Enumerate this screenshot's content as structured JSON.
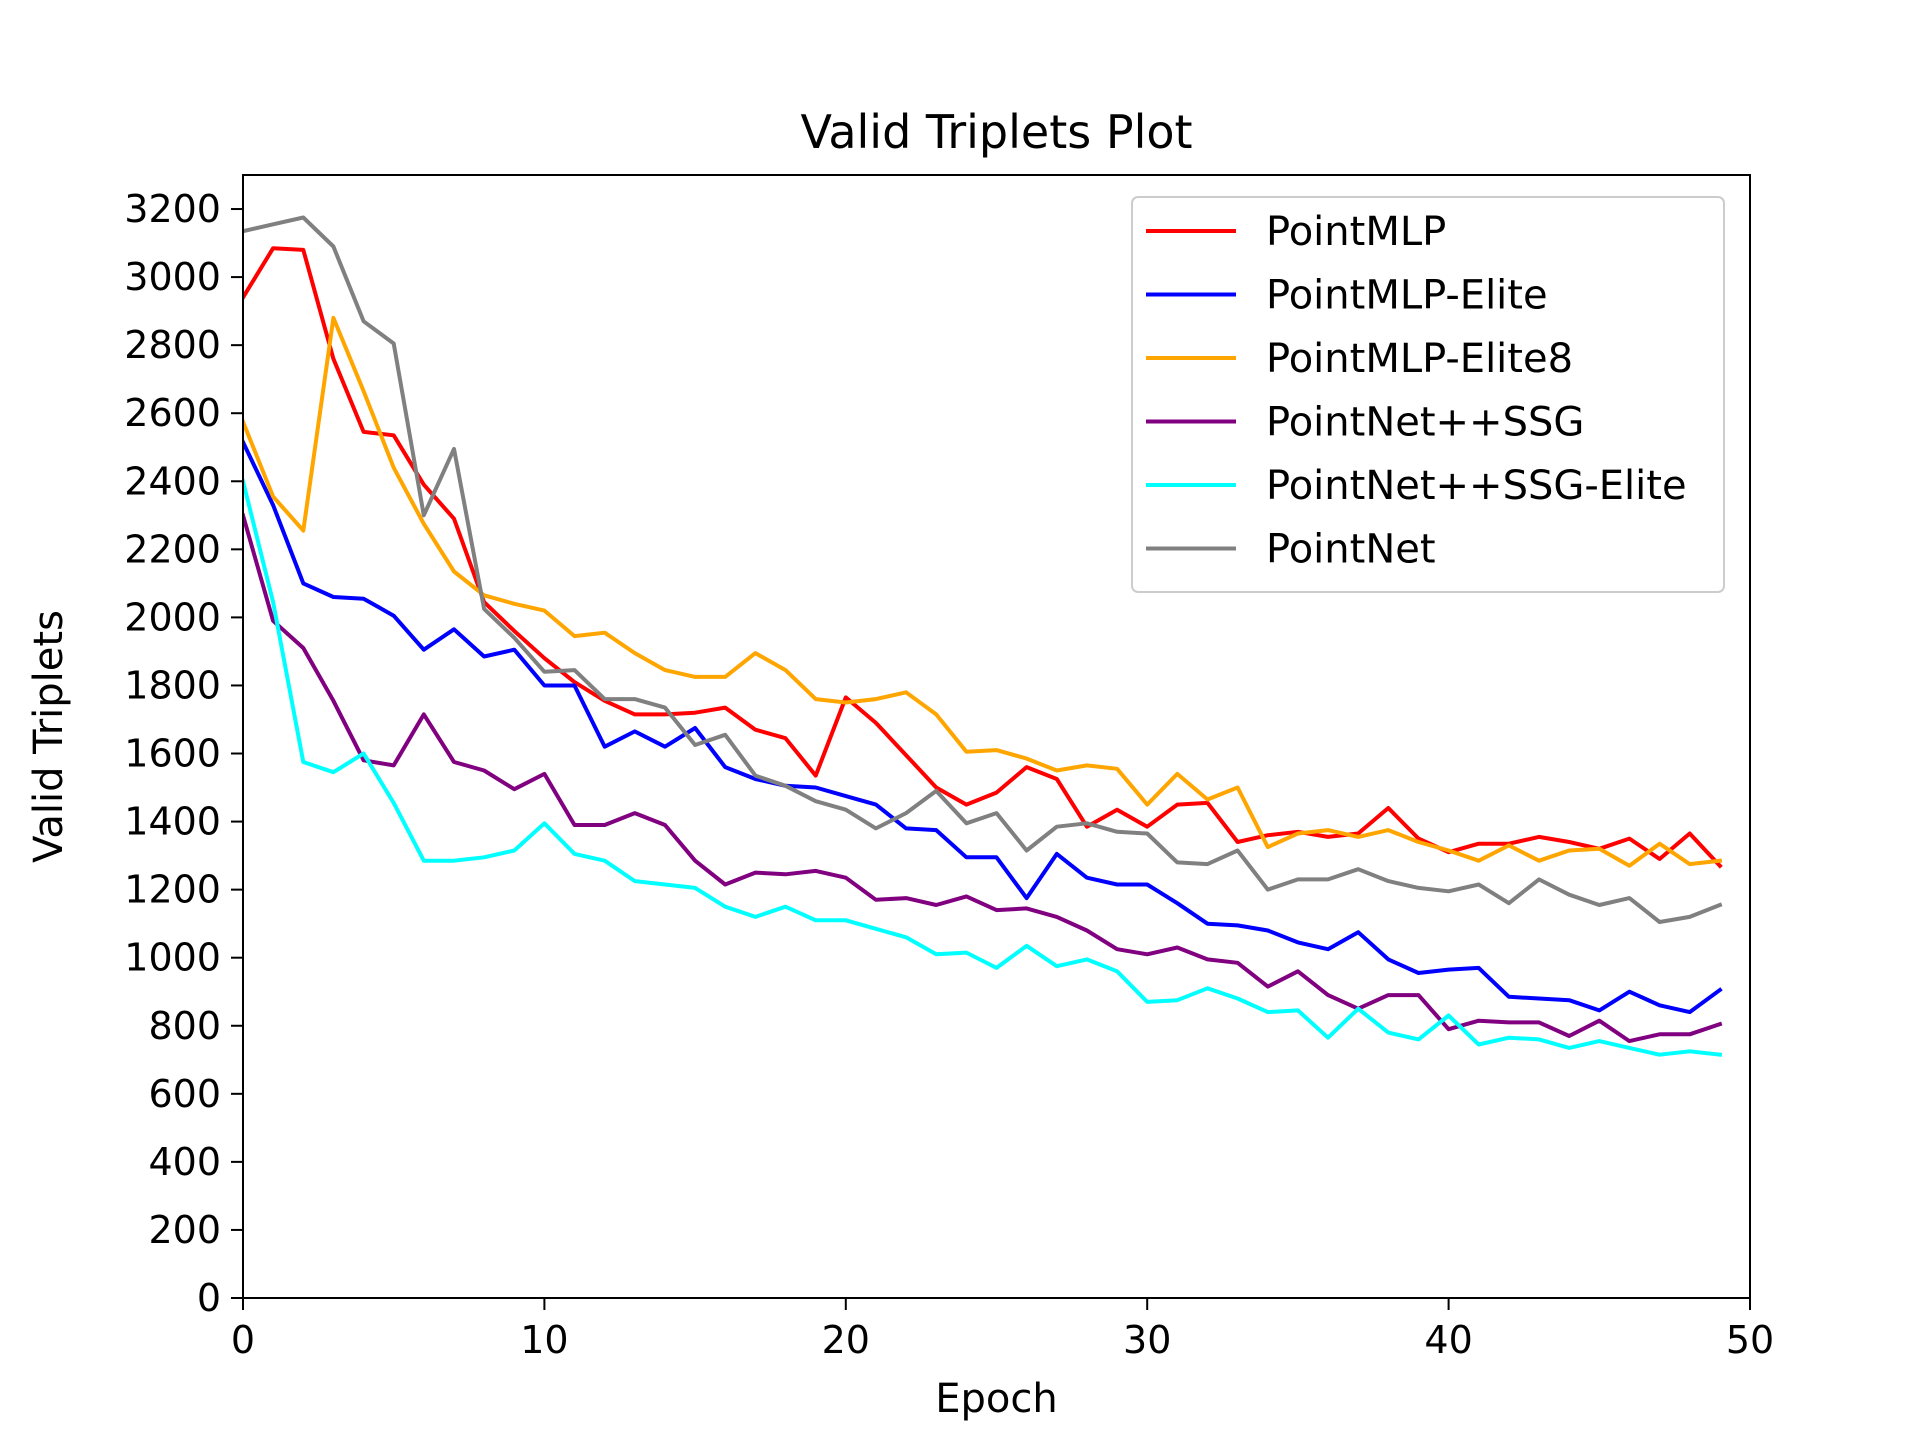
{
  "chart_data": {
    "type": "line",
    "title": "Valid Triplets Plot",
    "xlabel": "Epoch",
    "ylabel": "Valid Triplets",
    "xlim": [
      0,
      50
    ],
    "ylim": [
      0,
      3300
    ],
    "xticks": [
      0,
      10,
      20,
      30,
      40,
      50
    ],
    "yticks": [
      0,
      200,
      400,
      600,
      800,
      1000,
      1200,
      1400,
      1600,
      1800,
      2000,
      2200,
      2400,
      2600,
      2800,
      3000,
      3200
    ],
    "grid": false,
    "legend_position": "upper right",
    "x": [
      0,
      1,
      2,
      3,
      4,
      5,
      6,
      7,
      8,
      9,
      10,
      11,
      12,
      13,
      14,
      15,
      16,
      17,
      18,
      19,
      20,
      21,
      22,
      23,
      24,
      25,
      26,
      27,
      28,
      29,
      30,
      31,
      32,
      33,
      34,
      35,
      36,
      37,
      38,
      39,
      40,
      41,
      42,
      43,
      44,
      45,
      46,
      47,
      48,
      49
    ],
    "series": [
      {
        "name": "PointMLP",
        "color": "#ff0000",
        "values": [
          2940,
          3085,
          3080,
          2760,
          2545,
          2535,
          2390,
          2290,
          2045,
          1960,
          1880,
          1810,
          1755,
          1715,
          1715,
          1720,
          1735,
          1670,
          1645,
          1535,
          1765,
          1690,
          1595,
          1500,
          1450,
          1485,
          1560,
          1525,
          1385,
          1435,
          1385,
          1450,
          1455,
          1340,
          1360,
          1370,
          1355,
          1365,
          1440,
          1350,
          1310,
          1335,
          1335,
          1355,
          1340,
          1320,
          1350,
          1290,
          1365,
          1270
        ]
      },
      {
        "name": "PointMLP-Elite",
        "color": "#0000ff",
        "values": [
          2515,
          2330,
          2100,
          2060,
          2055,
          2005,
          1905,
          1965,
          1885,
          1905,
          1800,
          1800,
          1620,
          1665,
          1620,
          1675,
          1560,
          1525,
          1505,
          1500,
          1475,
          1450,
          1380,
          1375,
          1295,
          1295,
          1175,
          1305,
          1235,
          1215,
          1215,
          1160,
          1100,
          1095,
          1080,
          1045,
          1025,
          1075,
          995,
          955,
          965,
          970,
          885,
          880,
          875,
          845,
          900,
          860,
          840,
          905
        ]
      },
      {
        "name": "PointMLP-Elite8",
        "color": "#ffa500",
        "values": [
          2575,
          2355,
          2255,
          2880,
          2665,
          2440,
          2275,
          2135,
          2065,
          2040,
          2020,
          1945,
          1955,
          1895,
          1845,
          1825,
          1825,
          1895,
          1845,
          1760,
          1750,
          1760,
          1780,
          1715,
          1605,
          1610,
          1585,
          1550,
          1565,
          1555,
          1450,
          1540,
          1465,
          1500,
          1325,
          1365,
          1375,
          1355,
          1375,
          1340,
          1315,
          1285,
          1330,
          1285,
          1315,
          1320,
          1270,
          1335,
          1275,
          1285
        ]
      },
      {
        "name": "PointNet++SSG",
        "color": "#800080",
        "values": [
          2300,
          1990,
          1910,
          1755,
          1580,
          1565,
          1715,
          1575,
          1550,
          1495,
          1540,
          1390,
          1390,
          1425,
          1390,
          1285,
          1215,
          1250,
          1245,
          1255,
          1235,
          1170,
          1175,
          1155,
          1180,
          1140,
          1145,
          1120,
          1080,
          1025,
          1010,
          1030,
          995,
          985,
          915,
          960,
          890,
          850,
          890,
          890,
          790,
          815,
          810,
          810,
          770,
          815,
          755,
          775,
          775,
          805
        ]
      },
      {
        "name": "PointNet++SSG-Elite",
        "color": "#00ffff",
        "values": [
          2400,
          2045,
          1575,
          1545,
          1600,
          1455,
          1285,
          1285,
          1295,
          1315,
          1395,
          1305,
          1285,
          1225,
          1215,
          1205,
          1150,
          1120,
          1150,
          1110,
          1110,
          1085,
          1060,
          1010,
          1015,
          970,
          1035,
          975,
          995,
          960,
          870,
          875,
          910,
          880,
          840,
          845,
          765,
          850,
          780,
          760,
          830,
          745,
          765,
          760,
          735,
          755,
          735,
          715,
          725,
          715
        ]
      },
      {
        "name": "PointNet",
        "color": "#808080",
        "values": [
          3135,
          3155,
          3175,
          3090,
          2870,
          2805,
          2300,
          2495,
          2025,
          1940,
          1840,
          1845,
          1760,
          1760,
          1735,
          1625,
          1655,
          1535,
          1505,
          1460,
          1435,
          1380,
          1425,
          1490,
          1395,
          1425,
          1315,
          1385,
          1395,
          1370,
          1365,
          1280,
          1275,
          1315,
          1200,
          1230,
          1230,
          1260,
          1225,
          1205,
          1195,
          1215,
          1160,
          1230,
          1185,
          1155,
          1175,
          1105,
          1120,
          1155
        ]
      }
    ]
  }
}
